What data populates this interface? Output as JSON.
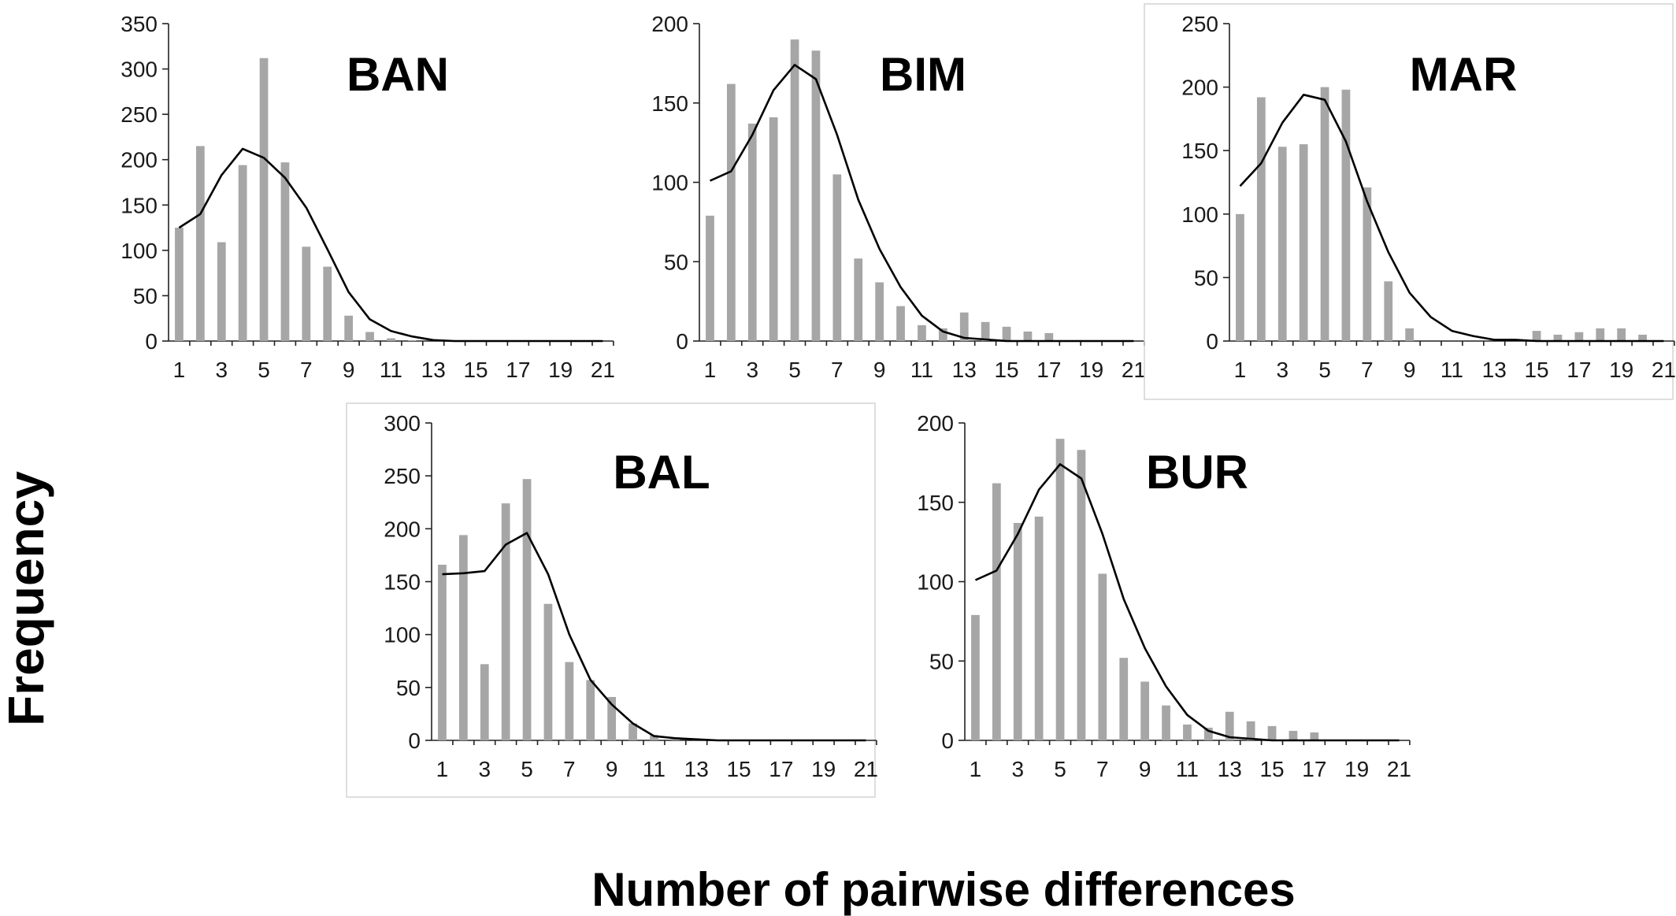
{
  "figure": {
    "ylabel": "Frequency",
    "xlabel": "Number of pairwise differences"
  },
  "chart_data": [
    {
      "type": "bar",
      "title": "BAN",
      "x": [
        1,
        2,
        3,
        4,
        5,
        6,
        7,
        8,
        9,
        10,
        11,
        12,
        13,
        14,
        15,
        16,
        17,
        18,
        19,
        20,
        21
      ],
      "xticks": [
        1,
        3,
        5,
        7,
        9,
        11,
        13,
        15,
        17,
        19,
        21
      ],
      "yticks": [
        0,
        50,
        100,
        150,
        200,
        250,
        300,
        350
      ],
      "ylim": [
        0,
        350
      ],
      "series": [
        {
          "type": "bar",
          "values": [
            125,
            215,
            109,
            194,
            312,
            197,
            104,
            82,
            28,
            10,
            3,
            1,
            0,
            0,
            0,
            0,
            0,
            0,
            0,
            0,
            0
          ]
        },
        {
          "type": "line",
          "values": [
            125,
            140,
            183,
            212,
            202,
            180,
            147,
            101,
            54,
            24,
            11,
            5,
            1,
            0,
            0,
            0,
            0,
            0,
            0,
            0,
            0
          ]
        }
      ]
    },
    {
      "type": "bar",
      "title": "BIM",
      "x": [
        1,
        2,
        3,
        4,
        5,
        6,
        7,
        8,
        9,
        10,
        11,
        12,
        13,
        14,
        15,
        16,
        17,
        18,
        19,
        20,
        21
      ],
      "xticks": [
        1,
        3,
        5,
        7,
        9,
        11,
        13,
        15,
        17,
        19,
        21
      ],
      "yticks": [
        0,
        50,
        100,
        150,
        200
      ],
      "ylim": [
        0,
        200
      ],
      "series": [
        {
          "type": "bar",
          "values": [
            79,
            162,
            137,
            141,
            190,
            183,
            105,
            52,
            37,
            22,
            10,
            8,
            18,
            12,
            9,
            6,
            5,
            0,
            0,
            0,
            0
          ]
        },
        {
          "type": "line",
          "values": [
            101,
            107,
            130,
            158,
            174,
            165,
            130,
            89,
            58,
            34,
            16,
            6,
            2,
            1,
            0,
            0,
            0,
            0,
            0,
            0,
            0
          ]
        }
      ]
    },
    {
      "type": "bar",
      "title": "MAR",
      "x": [
        1,
        2,
        3,
        4,
        5,
        6,
        7,
        8,
        9,
        10,
        11,
        12,
        13,
        14,
        15,
        16,
        17,
        18,
        19,
        20,
        21
      ],
      "xticks": [
        1,
        3,
        5,
        7,
        9,
        11,
        13,
        15,
        17,
        19,
        21
      ],
      "yticks": [
        0,
        50,
        100,
        150,
        200,
        250
      ],
      "ylim": [
        0,
        250
      ],
      "series": [
        {
          "type": "bar",
          "values": [
            100,
            192,
            153,
            155,
            200,
            198,
            121,
            47,
            10,
            0,
            0,
            0,
            0,
            0,
            8,
            5,
            7,
            10,
            10,
            5,
            0
          ]
        },
        {
          "type": "line",
          "values": [
            122,
            140,
            172,
            194,
            190,
            157,
            110,
            70,
            38,
            19,
            8,
            4,
            1,
            1,
            0,
            0,
            0,
            0,
            0,
            0,
            0
          ]
        }
      ]
    },
    {
      "type": "bar",
      "title": "BAL",
      "x": [
        1,
        2,
        3,
        4,
        5,
        6,
        7,
        8,
        9,
        10,
        11,
        12,
        13,
        14,
        15,
        16,
        17,
        18,
        19,
        20,
        21
      ],
      "xticks": [
        1,
        3,
        5,
        7,
        9,
        11,
        13,
        15,
        17,
        19,
        21
      ],
      "yticks": [
        0,
        50,
        100,
        150,
        200,
        250,
        300
      ],
      "ylim": [
        0,
        300
      ],
      "series": [
        {
          "type": "bar",
          "values": [
            166,
            194,
            72,
            224,
            247,
            129,
            74,
            57,
            41,
            16,
            5,
            3,
            1,
            0,
            0,
            0,
            0,
            0,
            0,
            0,
            0
          ]
        },
        {
          "type": "line",
          "values": [
            157,
            158,
            160,
            185,
            196,
            157,
            100,
            57,
            34,
            16,
            4,
            2,
            1,
            0,
            0,
            0,
            0,
            0,
            0,
            0,
            0
          ]
        }
      ]
    },
    {
      "type": "bar",
      "title": "BUR",
      "x": [
        1,
        2,
        3,
        4,
        5,
        6,
        7,
        8,
        9,
        10,
        11,
        12,
        13,
        14,
        15,
        16,
        17,
        18,
        19,
        20,
        21
      ],
      "xticks": [
        1,
        3,
        5,
        7,
        9,
        11,
        13,
        15,
        17,
        19,
        21
      ],
      "yticks": [
        0,
        50,
        100,
        150,
        200
      ],
      "ylim": [
        0,
        200
      ],
      "series": [
        {
          "type": "bar",
          "values": [
            79,
            162,
            137,
            141,
            190,
            183,
            105,
            52,
            37,
            22,
            10,
            8,
            18,
            12,
            9,
            6,
            5,
            0,
            0,
            0,
            0
          ]
        },
        {
          "type": "line",
          "values": [
            101,
            107,
            130,
            158,
            174,
            165,
            130,
            89,
            58,
            34,
            16,
            6,
            2,
            1,
            0,
            0,
            0,
            0,
            0,
            0,
            0
          ]
        }
      ]
    }
  ]
}
